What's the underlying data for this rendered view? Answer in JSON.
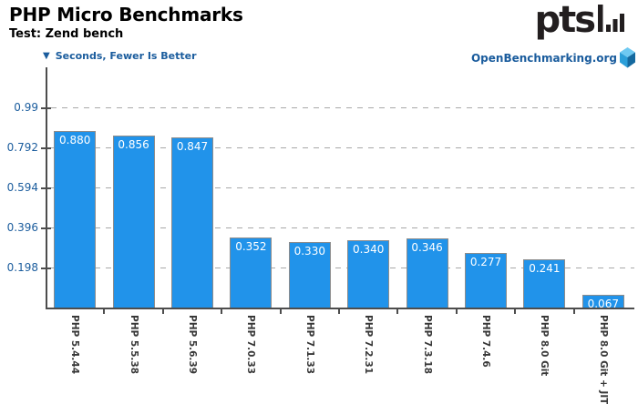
{
  "header": {
    "title": "PHP Micro Benchmarks",
    "subtitle": "Test: Zend bench",
    "unit_note": "Seconds, Fewer Is Better",
    "down_triangle": "▼",
    "branding": "OpenBenchmarking.org",
    "logo_text": "pts"
  },
  "chart_data": {
    "type": "bar",
    "title": "PHP Micro Benchmarks",
    "subtitle": "Test: Zend bench",
    "ylabel": "Seconds",
    "better_direction": "Fewer Is Better",
    "legend": "none",
    "grid": "dashed-horizontal",
    "categories": [
      "PHP 5.4.44",
      "PHP 5.5.38",
      "PHP 5.6.39",
      "PHP 7.0.33",
      "PHP 7.1.33",
      "PHP 7.2.31",
      "PHP 7.3.18",
      "PHP 7.4.6",
      "PHP 8.0 Git",
      "PHP 8.0 Git + JIT"
    ],
    "values": [
      0.88,
      0.856,
      0.847,
      0.352,
      0.33,
      0.34,
      0.346,
      0.277,
      0.241,
      0.067
    ],
    "value_labels": [
      "0.880",
      "0.856",
      "0.847",
      "0.352",
      "0.330",
      "0.340",
      "0.346",
      "0.277",
      "0.241",
      "0.067"
    ],
    "yticks": [
      0.198,
      0.396,
      0.594,
      0.792,
      0.99
    ],
    "ytick_labels": [
      "0.198",
      "0.396",
      "0.594",
      "0.792",
      "0.99"
    ],
    "ylim": [
      0,
      1.2
    ],
    "colors": {
      "bar_fill": "#2193ea",
      "bar_border": "#8c8c8c",
      "axis": "#4d4d4d",
      "grid": "#a8a8a8",
      "tick_label": "#1a5c9d",
      "value_label": "#ffffff",
      "category_label": "#383838",
      "accent_blue": "#1a5c9d"
    }
  }
}
